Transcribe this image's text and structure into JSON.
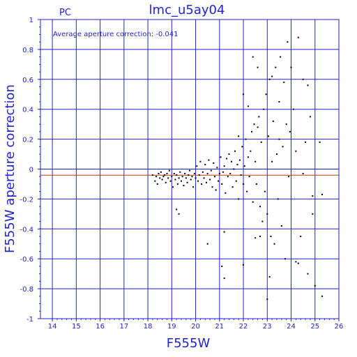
{
  "chart_data": {
    "type": "scatter",
    "title": "lmc_u5ay04",
    "corner_label": "PC",
    "annotation": "Average aperture correction: -0.041",
    "xlabel": "F555W",
    "ylabel": "F555W aperture correction",
    "xlim": [
      13.5,
      26
    ],
    "ylim": [
      -1,
      1
    ],
    "grid": true,
    "xticks": [
      14,
      15,
      16,
      17,
      18,
      19,
      20,
      21,
      22,
      23,
      24,
      25,
      26
    ],
    "yticks": [
      -1,
      -0.8,
      -0.6,
      -0.4,
      -0.2,
      0,
      0.2,
      0.4,
      0.6,
      0.8,
      1
    ],
    "ytick_labels": [
      "-1",
      "-0.8",
      "-0.6",
      "-0.4",
      "-0.2",
      "0",
      "0.2",
      "0.4",
      "0.6",
      "0.8",
      "1"
    ],
    "average_line": -0.041,
    "colors": {
      "axis": "#2222cc",
      "grid": "#2222cc",
      "average_line": "#b23a1c",
      "points": "#000000"
    },
    "points": [
      [
        18.2,
        -0.04
      ],
      [
        18.3,
        -0.08
      ],
      [
        18.35,
        -0.05
      ],
      [
        18.4,
        -0.1
      ],
      [
        18.45,
        -0.03
      ],
      [
        18.5,
        -0.06
      ],
      [
        18.55,
        -0.02
      ],
      [
        18.6,
        -0.07
      ],
      [
        18.65,
        -0.05
      ],
      [
        18.7,
        -0.04
      ],
      [
        18.75,
        -0.09
      ],
      [
        18.8,
        -0.03
      ],
      [
        18.85,
        -0.06
      ],
      [
        18.9,
        -0.01
      ],
      [
        18.95,
        -0.08
      ],
      [
        19.0,
        -0.05
      ],
      [
        19.05,
        -0.12
      ],
      [
        19.1,
        -0.03
      ],
      [
        19.15,
        -0.07
      ],
      [
        19.2,
        -0.04
      ],
      [
        19.25,
        -0.1
      ],
      [
        19.3,
        -0.06
      ],
      [
        19.35,
        -0.02
      ],
      [
        19.4,
        -0.08
      ],
      [
        19.45,
        -0.05
      ],
      [
        19.5,
        -0.11
      ],
      [
        19.55,
        -0.03
      ],
      [
        19.6,
        -0.06
      ],
      [
        19.65,
        -0.09
      ],
      [
        19.7,
        -0.04
      ],
      [
        19.75,
        -0.01
      ],
      [
        19.8,
        -0.07
      ],
      [
        19.85,
        -0.05
      ],
      [
        19.9,
        -0.12
      ],
      [
        19.95,
        -0.03
      ],
      [
        20.0,
        -0.06
      ],
      [
        20.05,
        0.02
      ],
      [
        20.1,
        -0.08
      ],
      [
        20.15,
        -0.04
      ],
      [
        20.2,
        0.05
      ],
      [
        20.25,
        -0.1
      ],
      [
        20.3,
        -0.02
      ],
      [
        20.35,
        -0.06
      ],
      [
        20.4,
        0.03
      ],
      [
        20.45,
        -0.09
      ],
      [
        20.5,
        -0.03
      ],
      [
        20.55,
        0.06
      ],
      [
        20.6,
        -0.07
      ],
      [
        20.65,
        -0.01
      ],
      [
        20.7,
        -0.12
      ],
      [
        20.75,
        0.04
      ],
      [
        20.8,
        -0.05
      ],
      [
        20.85,
        -0.14
      ],
      [
        20.9,
        0.01
      ],
      [
        20.95,
        -0.08
      ],
      [
        21.0,
        -0.03
      ],
      [
        21.05,
        0.08
      ],
      [
        21.1,
        -0.1
      ],
      [
        21.15,
        -0.02
      ],
      [
        21.2,
        0.02
      ],
      [
        21.25,
        -0.16
      ],
      [
        21.3,
        0.07
      ],
      [
        21.35,
        -0.05
      ],
      [
        21.4,
        0.1
      ],
      [
        21.45,
        -0.03
      ],
      [
        21.5,
        0.05
      ],
      [
        21.55,
        -0.12
      ],
      [
        21.6,
        0.0
      ],
      [
        21.65,
        0.12
      ],
      [
        21.7,
        -0.08
      ],
      [
        21.75,
        0.03
      ],
      [
        21.8,
        -0.2
      ],
      [
        21.85,
        0.06
      ],
      [
        21.9,
        -0.04
      ],
      [
        21.95,
        0.15
      ],
      [
        22.0,
        -0.1
      ],
      [
        22.05,
        0.02
      ],
      [
        22.1,
        0.2
      ],
      [
        22.15,
        -0.15
      ],
      [
        22.2,
        0.08
      ],
      [
        22.25,
        -0.05
      ],
      [
        22.3,
        0.12
      ],
      [
        22.35,
        0.25
      ],
      [
        22.4,
        -0.22
      ],
      [
        22.45,
        0.3
      ],
      [
        22.5,
        0.05
      ],
      [
        22.55,
        -0.1
      ],
      [
        22.6,
        0.28
      ],
      [
        22.65,
        0.35
      ],
      [
        22.7,
        -0.25
      ],
      [
        22.75,
        0.18
      ],
      [
        22.8,
        -0.35
      ],
      [
        22.85,
        0.4
      ],
      [
        22.9,
        -0.15
      ],
      [
        22.95,
        0.5
      ],
      [
        23.0,
        -0.3
      ],
      [
        23.05,
        0.22
      ],
      [
        23.1,
        0.6
      ],
      [
        23.15,
        -0.45
      ],
      [
        23.2,
        0.05
      ],
      [
        23.25,
        0.32
      ],
      [
        23.3,
        -0.5
      ],
      [
        23.35,
        0.68
      ],
      [
        23.4,
        0.1
      ],
      [
        23.45,
        -0.2
      ],
      [
        23.5,
        0.45
      ],
      [
        23.55,
        0.75
      ],
      [
        23.6,
        -0.38
      ],
      [
        23.65,
        0.15
      ],
      [
        23.7,
        0.58
      ],
      [
        23.75,
        -0.6
      ],
      [
        23.8,
        0.3
      ],
      [
        23.85,
        0.85
      ],
      [
        23.9,
        -0.05
      ],
      [
        23.95,
        0.25
      ],
      [
        24.0,
        0.68
      ],
      [
        24.1,
        0.4
      ],
      [
        24.2,
        -0.62
      ],
      [
        24.3,
        0.88
      ],
      [
        24.4,
        -0.45
      ],
      [
        24.5,
        0.6
      ],
      [
        24.6,
        0.18
      ],
      [
        24.7,
        -0.7
      ],
      [
        24.8,
        0.35
      ],
      [
        24.9,
        -0.3
      ],
      [
        25.0,
        -0.78
      ],
      [
        25.2,
        0.18
      ],
      [
        25.3,
        -0.85
      ],
      [
        25.3,
        -0.17
      ],
      [
        24.9,
        -0.18
      ],
      [
        24.5,
        -0.03
      ],
      [
        24.2,
        0.12
      ],
      [
        22.0,
        -0.64
      ],
      [
        21.2,
        -0.73
      ],
      [
        21.1,
        -0.65
      ],
      [
        23.0,
        -0.87
      ],
      [
        20.5,
        -0.5
      ],
      [
        21.2,
        -0.42
      ],
      [
        19.2,
        -0.27
      ],
      [
        19.3,
        -0.3
      ],
      [
        22.5,
        -0.46
      ],
      [
        22.7,
        -0.45
      ],
      [
        23.1,
        -0.72
      ],
      [
        24.3,
        -0.63
      ],
      [
        24.7,
        0.56
      ],
      [
        23.5,
        0.2
      ],
      [
        22.4,
        0.75
      ],
      [
        22.6,
        0.68
      ],
      [
        23.2,
        0.62
      ],
      [
        22.2,
        0.42
      ],
      [
        21.8,
        0.22
      ],
      [
        22.0,
        0.5
      ]
    ]
  }
}
